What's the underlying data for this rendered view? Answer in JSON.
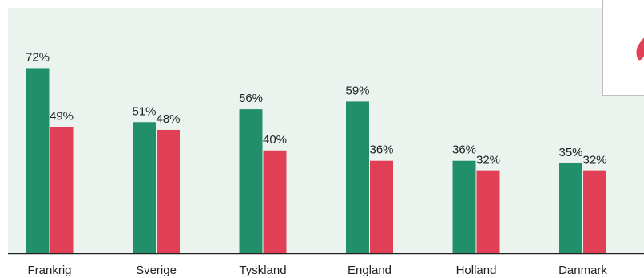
{
  "chart_data": {
    "type": "bar",
    "categories": [
      "Frankrig",
      "Sverige",
      "Tyskland",
      "England",
      "Holland",
      "Danmark"
    ],
    "series": [
      {
        "color": "#21906a",
        "values": [
          72,
          51,
          56,
          59,
          36,
          35
        ]
      },
      {
        "color": "#e03f55",
        "values": [
          49,
          48,
          40,
          36,
          32,
          32
        ]
      }
    ],
    "value_suffix": "%",
    "ylim": [
      0,
      80
    ],
    "grid": false,
    "plot_background": "#eaf3ee",
    "legend_placement": "top-right"
  }
}
